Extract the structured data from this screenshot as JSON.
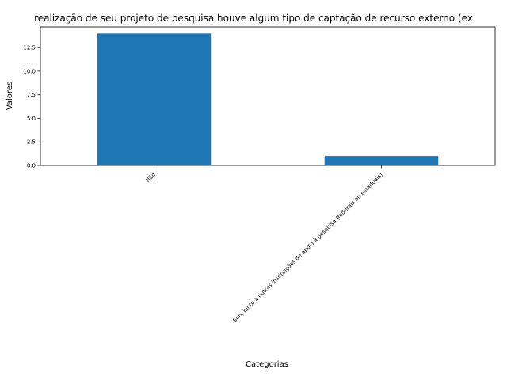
{
  "chart_data": {
    "type": "bar",
    "title": "realização de seu projeto de pesquisa houve algum tipo de captação de recurso externo (ex",
    "xlabel": "Categorias",
    "ylabel": "Valores",
    "categories": [
      "Não",
      "Sim, junto a outras instituições de apoio à pesquisa (federais ou estaduais)"
    ],
    "values": [
      14,
      1
    ],
    "ylim": [
      0,
      14.7
    ],
    "yticks": [
      "0.0",
      "2.5",
      "5.0",
      "7.5",
      "10.0",
      "12.5"
    ],
    "bar_color": "#1f77b4",
    "grid": false,
    "legend": false
  }
}
